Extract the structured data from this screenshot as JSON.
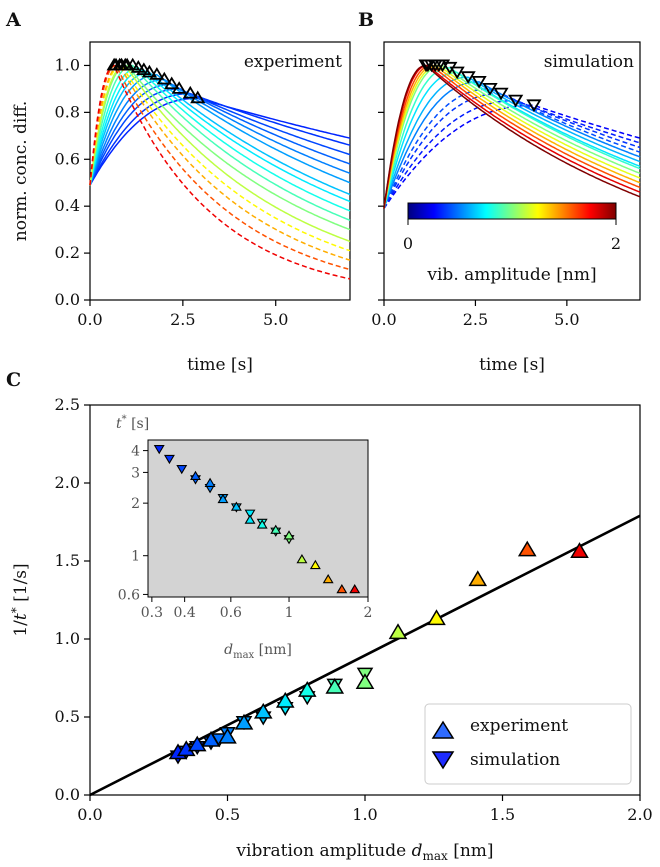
{
  "panels": {
    "a": {
      "letter": "A",
      "annotation": "experiment",
      "xlabel": "time [s]",
      "ylabel": "norm. conc. diff.",
      "xlim": [
        0,
        7
      ],
      "ylim": [
        0,
        1.1
      ],
      "xticks": [
        "0.0",
        "2.5",
        "5.0"
      ],
      "xtick_values": [
        0,
        2.5,
        5.0
      ],
      "yticks": [
        "0.0",
        "0.2",
        "0.4",
        "0.6",
        "0.8",
        "1.0"
      ],
      "ytick_values": [
        0,
        0.2,
        0.4,
        0.6,
        0.8,
        1.0
      ]
    },
    "b": {
      "letter": "B",
      "annotation": "simulation",
      "xlabel": "time [s]",
      "xlim": [
        0,
        7
      ],
      "ylim": [
        0,
        1.1
      ],
      "xticks": [
        "0.0",
        "2.5",
        "5.0"
      ],
      "xtick_values": [
        0,
        2.5,
        5.0
      ],
      "colorbar": {
        "label": "vib. amplitude [nm]",
        "min_label": "0",
        "max_label": "2",
        "range": [
          0,
          2
        ]
      }
    },
    "c": {
      "letter": "C",
      "xlabel": "vibration amplitude d_max [nm]",
      "ylabel": "1/t* [1/s]",
      "xticks": [
        "0.0",
        "0.5",
        "1.0",
        "1.5",
        "2.0"
      ],
      "xtick_values": [
        0,
        0.5,
        1.0,
        1.5,
        2.0
      ],
      "yticks": [
        "0.0",
        "0.5",
        "1.0",
        "1.5",
        "2.0",
        "2.5"
      ],
      "ytick_values": [
        0,
        0.5,
        1.0,
        1.5,
        2.0,
        2.5
      ],
      "legend": [
        "experiment",
        "simulation"
      ],
      "inset": {
        "xlabel": "d_max [nm]",
        "ylabel": "t* [s]",
        "xticks": [
          "0.3",
          "0.4",
          "0.6",
          "1",
          "2"
        ],
        "xtick_values": [
          0.3,
          0.4,
          0.6,
          1,
          2
        ],
        "yticks": [
          "0.6",
          "1",
          "2",
          "3",
          "4"
        ],
        "ytick_values": [
          0.6,
          1,
          2,
          3,
          4
        ]
      }
    }
  },
  "chart_data": [
    {
      "type": "line",
      "title": "",
      "xlabel": "time [s]",
      "ylabel": "norm. conc. diff.",
      "xlim": [
        0,
        7
      ],
      "ylim": [
        0,
        1.1
      ],
      "series_model": "normalized concentration difference curves, one per vibration amplitude; rise to a peak then decay",
      "amplitudes": [
        0.32,
        0.35,
        0.39,
        0.44,
        0.5,
        0.56,
        0.63,
        0.71,
        0.79,
        0.89,
        1.0,
        1.12,
        1.26,
        1.41,
        1.59,
        1.78
      ],
      "peak_time_s": [
        2.9,
        2.7,
        2.4,
        2.2,
        2.0,
        1.8,
        1.6,
        1.45,
        1.3,
        1.15,
        1.0,
        0.95,
        0.85,
        0.8,
        0.7,
        0.65
      ],
      "peak_value": [
        0.86,
        0.88,
        0.9,
        0.92,
        0.94,
        0.96,
        0.97,
        0.98,
        0.99,
        1.0,
        1.0,
        1.0,
        1.0,
        1.0,
        1.0,
        1.0
      ],
      "value_at_7s": [
        0.69,
        0.66,
        0.62,
        0.58,
        0.54,
        0.5,
        0.45,
        0.42,
        0.38,
        0.34,
        0.3,
        0.25,
        0.21,
        0.17,
        0.13,
        0.09
      ],
      "start_value": 0.49,
      "dashed_from_amplitude": 1.26
    },
    {
      "type": "line",
      "title": "",
      "xlabel": "time [s]",
      "ylabel": "",
      "xlim": [
        0,
        7
      ],
      "ylim": [
        0,
        1.1
      ],
      "amplitudes": [
        0.25,
        0.3,
        0.35,
        0.4,
        0.5,
        0.6,
        0.7,
        0.85,
        1.0,
        1.2,
        1.4,
        1.6,
        1.8,
        2.0
      ],
      "peak_time_s": [
        4.1,
        3.6,
        3.2,
        2.9,
        2.6,
        2.3,
        2.0,
        1.8,
        1.6,
        1.5,
        1.4,
        1.3,
        1.2,
        1.15
      ],
      "peak_value": [
        0.83,
        0.85,
        0.88,
        0.9,
        0.93,
        0.95,
        0.97,
        0.99,
        1.0,
        1.0,
        1.0,
        1.0,
        1.0,
        1.0
      ],
      "value_at_7s": [
        0.69,
        0.67,
        0.65,
        0.63,
        0.61,
        0.59,
        0.57,
        0.56,
        0.54,
        0.52,
        0.5,
        0.48,
        0.46,
        0.44
      ],
      "start_value": 0.39,
      "dashed_below_amplitude": 0.45
    },
    {
      "type": "scatter",
      "title": "",
      "xlabel": "vibration amplitude d_max [nm]",
      "ylabel": "1/t* [1/s]",
      "xlim": [
        0,
        2
      ],
      "ylim": [
        0,
        2.5
      ],
      "series": [
        {
          "name": "experiment",
          "marker": "triangle-up",
          "x": [
            0.32,
            0.35,
            0.39,
            0.44,
            0.5,
            0.56,
            0.63,
            0.71,
            0.79,
            0.89,
            1.0,
            1.12,
            1.26,
            1.41,
            1.59,
            1.78
          ],
          "y": [
            0.27,
            0.29,
            0.32,
            0.35,
            0.37,
            0.46,
            0.53,
            0.6,
            0.67,
            0.69,
            0.72,
            1.04,
            1.13,
            1.38,
            1.57,
            1.56
          ]
        },
        {
          "name": "simulation",
          "marker": "triangle-down",
          "x": [
            0.32,
            0.35,
            0.39,
            0.44,
            0.47,
            0.5,
            0.56,
            0.63,
            0.71,
            0.79,
            0.89,
            1.0
          ],
          "y": [
            0.25,
            0.28,
            0.31,
            0.34,
            0.36,
            0.4,
            0.47,
            0.5,
            0.56,
            0.63,
            0.71,
            0.78
          ]
        },
        {
          "name": "",
          "type": "line",
          "x": [
            0,
            2
          ],
          "y": [
            0,
            1.79
          ]
        }
      ],
      "legend_position": "bottom-right"
    },
    {
      "type": "scatter",
      "title": "",
      "xlabel": "d_max [nm]",
      "ylabel": "t* [s]",
      "x_scale": "log",
      "y_scale": "log",
      "xlim": [
        0.29,
        2.0
      ],
      "ylim": [
        0.58,
        4.6
      ],
      "background": "#d3d3d3",
      "series": [
        {
          "name": "experiment",
          "marker": "triangle-up",
          "x": [
            0.44,
            0.5,
            0.56,
            0.63,
            0.71,
            0.79,
            0.89,
            1.0,
            1.12,
            1.26,
            1.41,
            1.59,
            1.78
          ],
          "y": [
            2.85,
            2.6,
            2.1,
            1.9,
            1.6,
            1.5,
            1.4,
            1.3,
            0.95,
            0.88,
            0.73,
            0.64,
            0.64
          ]
        },
        {
          "name": "simulation",
          "marker": "triangle-down",
          "x": [
            0.32,
            0.35,
            0.39,
            0.44,
            0.5,
            0.56,
            0.63,
            0.71,
            0.79,
            0.89,
            1.0
          ],
          "y": [
            4.1,
            3.6,
            3.15,
            2.75,
            2.45,
            2.15,
            1.9,
            1.75,
            1.55,
            1.38,
            1.25
          ]
        }
      ]
    }
  ]
}
